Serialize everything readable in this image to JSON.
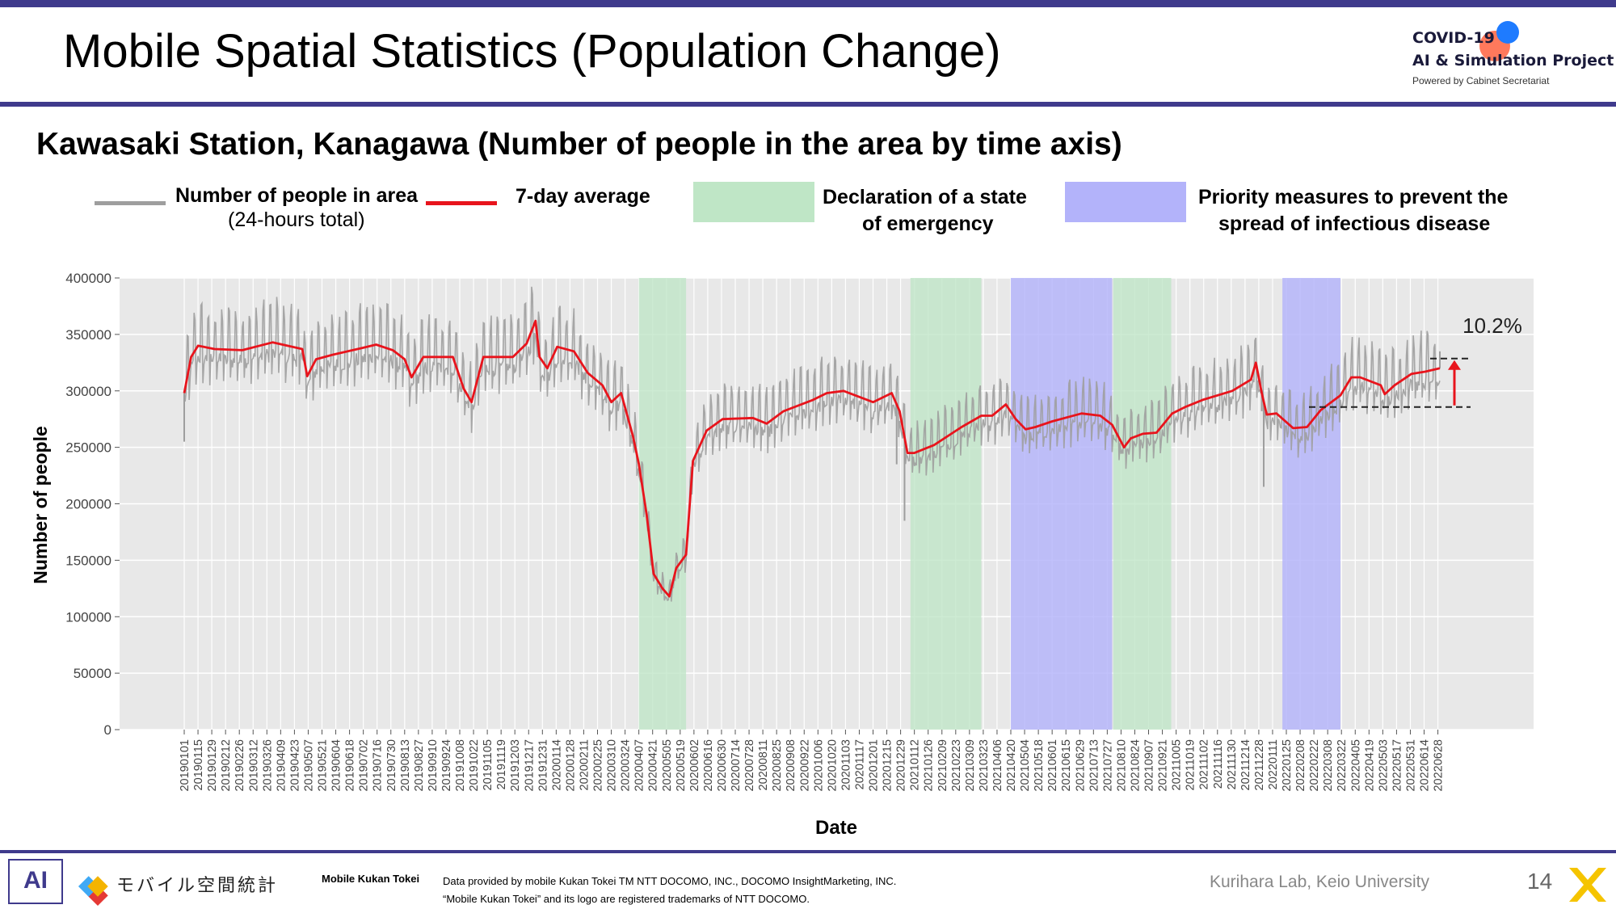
{
  "header": {
    "title": "Mobile Spatial Statistics (Population Change)",
    "logo_line1": "COVID-19",
    "logo_line2": "AI & Simulation Project",
    "logo_line3": "Powered by Cabinet Secretariat"
  },
  "legend": {
    "raw_label_1": "Number of people in area",
    "raw_label_2": "(24-hours total)",
    "avg_label": "7-day average",
    "emergency_label_1": "Declaration of a state",
    "emergency_label_2": "of emergency",
    "priority_label_1": "Priority measures to prevent the",
    "priority_label_2": "spread of infectious disease"
  },
  "colors": {
    "raw": "#9e9e9e",
    "avg": "#e8141c",
    "emergency": "#bfe6c6",
    "priority": "#b3b3fa",
    "plot_bg": "#e8e8e8",
    "brand": "#3f3a8c"
  },
  "chart_data": {
    "type": "line",
    "title": "Kawasaki Station, Kanagawa (Number of people in the area by time axis)",
    "xlabel": "Date",
    "ylabel": "Number of people",
    "ylim": [
      0,
      400000
    ],
    "yticks": [
      0,
      50000,
      100000,
      150000,
      200000,
      250000,
      300000,
      350000,
      400000
    ],
    "grid": true,
    "x_tick_labels": [
      "20190101",
      "20190115",
      "20190129",
      "20190212",
      "20190226",
      "20190312",
      "20190326",
      "20190409",
      "20190423",
      "20190507",
      "20190521",
      "20190604",
      "20190618",
      "20190702",
      "20190716",
      "20190730",
      "20190813",
      "20190827",
      "20190910",
      "20190924",
      "20191008",
      "20191022",
      "20191105",
      "20191119",
      "20191203",
      "20191217",
      "20191231",
      "20200114",
      "20200128",
      "20200211",
      "20200225",
      "20200310",
      "20200324",
      "20200407",
      "20200421",
      "20200505",
      "20200519",
      "20200602",
      "20200616",
      "20200630",
      "20200714",
      "20200728",
      "20200811",
      "20200825",
      "20200908",
      "20200922",
      "20201006",
      "20201020",
      "20201103",
      "20201117",
      "20201201",
      "20201215",
      "20201229",
      "20210112",
      "20210126",
      "20210209",
      "20210223",
      "20210309",
      "20210323",
      "20210406",
      "20210420",
      "20210504",
      "20210518",
      "20210601",
      "20210615",
      "20210629",
      "20210713",
      "20210727",
      "20210810",
      "20210824",
      "20210907",
      "20210921",
      "20211005",
      "20211019",
      "20211102",
      "20211116",
      "20211130",
      "20211214",
      "20211228",
      "20220111",
      "20220125",
      "20220208",
      "20220222",
      "20220308",
      "20220322",
      "20220405",
      "20220419",
      "20220503",
      "20220517",
      "20220531",
      "20220614",
      "20220628"
    ],
    "emergency_periods": [
      [
        "2020-04-07",
        "2020-05-25"
      ],
      [
        "2021-01-08",
        "2021-03-21"
      ],
      [
        "2021-08-02",
        "2021-09-30"
      ]
    ],
    "priority_periods": [
      [
        "2021-04-20",
        "2021-08-01"
      ],
      [
        "2022-01-21",
        "2022-03-21"
      ]
    ],
    "series": [
      {
        "name": "7-day average",
        "x": [
          "2019-01-01",
          "2019-01-08",
          "2019-01-15",
          "2019-02-01",
          "2019-03-01",
          "2019-04-01",
          "2019-05-01",
          "2019-05-06",
          "2019-05-15",
          "2019-06-01",
          "2019-07-01",
          "2019-07-15",
          "2019-08-01",
          "2019-08-13",
          "2019-08-20",
          "2019-09-01",
          "2019-10-01",
          "2019-10-12",
          "2019-10-20",
          "2019-11-01",
          "2019-12-01",
          "2019-12-15",
          "2019-12-24",
          "2019-12-28",
          "2020-01-05",
          "2020-01-15",
          "2020-02-01",
          "2020-02-15",
          "2020-03-01",
          "2020-03-10",
          "2020-03-20",
          "2020-04-01",
          "2020-04-07",
          "2020-04-15",
          "2020-04-22",
          "2020-05-01",
          "2020-05-08",
          "2020-05-15",
          "2020-05-25",
          "2020-06-01",
          "2020-06-15",
          "2020-07-01",
          "2020-08-01",
          "2020-08-15",
          "2020-09-01",
          "2020-10-01",
          "2020-10-15",
          "2020-11-01",
          "2020-12-01",
          "2020-12-20",
          "2020-12-28",
          "2021-01-05",
          "2021-01-12",
          "2021-02-01",
          "2021-03-01",
          "2021-03-21",
          "2021-04-01",
          "2021-04-15",
          "2021-04-25",
          "2021-05-05",
          "2021-05-15",
          "2021-06-01",
          "2021-07-01",
          "2021-07-20",
          "2021-08-01",
          "2021-08-13",
          "2021-08-20",
          "2021-09-01",
          "2021-09-15",
          "2021-10-01",
          "2021-10-15",
          "2021-11-01",
          "2021-12-01",
          "2021-12-20",
          "2021-12-25",
          "2021-12-31",
          "2022-01-05",
          "2022-01-15",
          "2022-02-01",
          "2022-02-15",
          "2022-03-01",
          "2022-03-21",
          "2022-04-01",
          "2022-04-10",
          "2022-05-01",
          "2022-05-05",
          "2022-05-15",
          "2022-06-01",
          "2022-06-15",
          "2022-06-30"
        ],
        "y": [
          298000,
          330000,
          340000,
          337000,
          336000,
          343000,
          337000,
          313000,
          328000,
          332000,
          338000,
          341000,
          336000,
          328000,
          312000,
          330000,
          330000,
          302000,
          290000,
          330000,
          330000,
          342000,
          362000,
          330000,
          320000,
          339000,
          335000,
          316000,
          305000,
          290000,
          298000,
          260000,
          235000,
          190000,
          138000,
          125000,
          118000,
          143000,
          155000,
          238000,
          265000,
          275000,
          276000,
          271000,
          282000,
          292000,
          298000,
          300000,
          290000,
          298000,
          282000,
          245000,
          245000,
          252000,
          268000,
          278000,
          278000,
          288000,
          275000,
          266000,
          268000,
          273000,
          280000,
          278000,
          270000,
          250000,
          258000,
          262000,
          263000,
          280000,
          286000,
          292000,
          300000,
          310000,
          325000,
          298000,
          279000,
          280000,
          267000,
          268000,
          283000,
          296000,
          312000,
          312000,
          305000,
          297000,
          305000,
          315000,
          317000,
          320000
        ]
      },
      {
        "name": "Number of people in area",
        "x": [
          "2019-01-01",
          "2020-12-25",
          "2021-01-02",
          "2021-12-31",
          "2022-01-02",
          "2022-06-30"
        ],
        "y": [
          255000,
          235000,
          185000,
          282000,
          215000,
          335000
        ]
      }
    ],
    "annotation": "10.2%"
  },
  "footer": {
    "brand": "Mobile Kukan Tokei",
    "mk_logo": "モバイル空間統計",
    "data_line1": "Data provided by mobile Kukan Tokei TM NTT DOCOMO, INC., DOCOMO InsightMarketing, INC.",
    "data_line2": "“Mobile Kukan Tokei” and its logo are registered trademarks of NTT DOCOMO.",
    "lab": "Kurihara Lab, Keio University",
    "page": "14",
    "ai_logo": "AI"
  }
}
